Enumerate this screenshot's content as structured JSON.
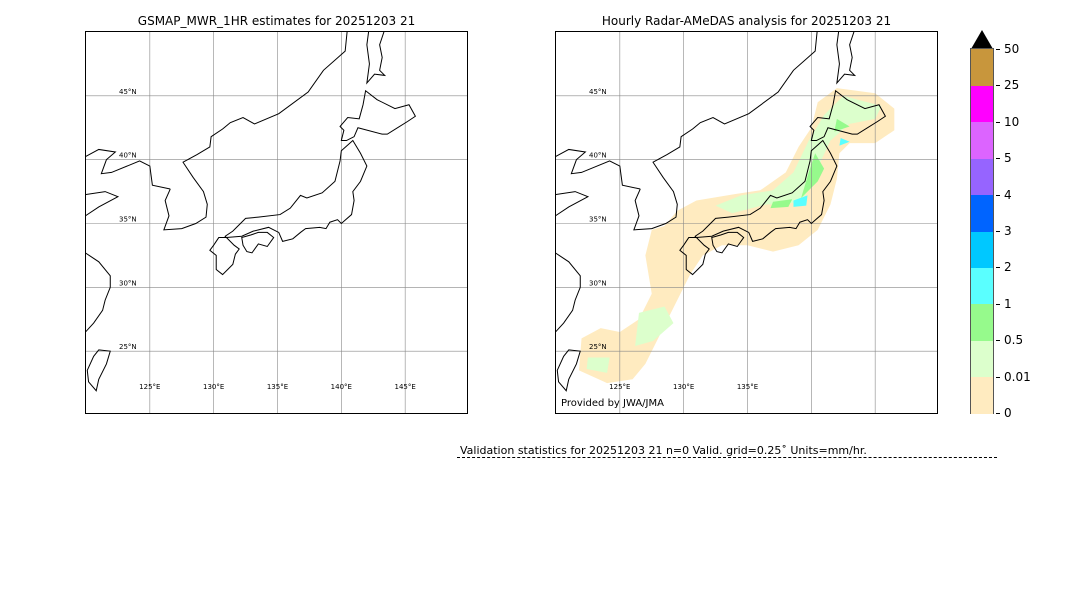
{
  "chart_data": [
    {
      "type": "map",
      "title": "GSMAP_MWR_1HR estimates for 20251203 21",
      "lon_range": [
        120,
        150
      ],
      "lat_range": [
        20,
        50
      ],
      "lat_ticks": [
        "45°N",
        "40°N",
        "35°N",
        "30°N",
        "25°N"
      ],
      "lon_ticks": [
        "125°E",
        "130°E",
        "135°E",
        "140°E",
        "145°E"
      ],
      "grid": true,
      "precipitation": "none"
    },
    {
      "type": "map",
      "title": "Hourly Radar-AMeDAS analysis for 20251203 21",
      "lon_range": [
        120,
        150
      ],
      "lat_range": [
        20,
        50
      ],
      "lat_ticks": [
        "45°N",
        "40°N",
        "35°N",
        "30°N",
        "25°N"
      ],
      "lon_ticks": [
        "125°E",
        "130°E",
        "135°E"
      ],
      "grid": true,
      "credit": "Provided by JWA/JMA",
      "precipitation": "mostly 0–0.01 mm/hr coverage around Japan, with 0.01–0.5 and scattered 0.5–2 mm/hr over northern Honshu and Hokkaido"
    }
  ],
  "colorbar": {
    "ticks": [
      "0",
      "0.01",
      "0.5",
      "1",
      "2",
      "3",
      "4",
      "5",
      "10",
      "25",
      "50"
    ],
    "colors": [
      "#ffebc0",
      "#dcffcc",
      "#96fa8c",
      "#5affff",
      "#00c8ff",
      "#0064ff",
      "#9664ff",
      "#dc64ff",
      "#ff00ff",
      "#c8963c"
    ],
    "extend_color": "#000000"
  },
  "stats": {
    "text": "Validation statistics for 20251203 21  n=0 Valid. grid=0.25˚ Units=mm/hr."
  }
}
